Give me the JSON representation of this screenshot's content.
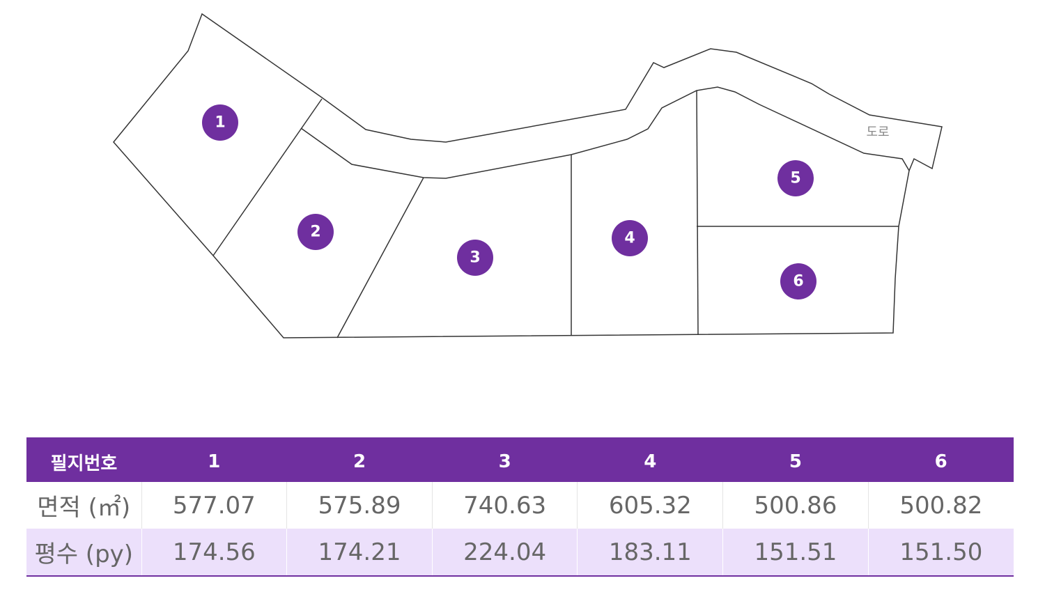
{
  "map": {
    "road_label": "도로",
    "parcels": [
      "1",
      "2",
      "3",
      "4",
      "5",
      "6"
    ]
  },
  "table": {
    "header": [
      "필지번호",
      "1",
      "2",
      "3",
      "4",
      "5",
      "6"
    ],
    "rows": [
      [
        "면적 (㎡)",
        "577.07",
        "575.89",
        "740.63",
        "605.32",
        "500.86",
        "500.82"
      ],
      [
        "평수 (py)",
        "174.56",
        "174.21",
        "224.04",
        "183.11",
        "151.51",
        "151.50"
      ]
    ]
  }
}
